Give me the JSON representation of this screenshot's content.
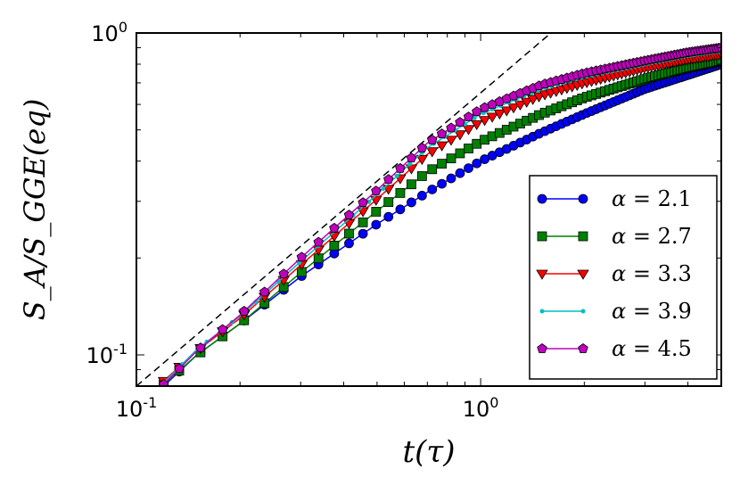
{
  "chart_data": {
    "type": "line",
    "title": "",
    "xlabel": "t(τ)",
    "ylabel": "S_A/S_GGE(eq)",
    "xscale": "log",
    "yscale": "log",
    "xlim": [
      0.1,
      5.0
    ],
    "ylim": [
      0.08,
      1.0
    ],
    "x_ticks": [
      {
        "value": 0.1,
        "base": "10",
        "exp": "-1"
      },
      {
        "value": 1.0,
        "base": "10",
        "exp": "0"
      }
    ],
    "y_ticks": [
      {
        "value": 0.1,
        "base": "10",
        "exp": "-1"
      },
      {
        "value": 1.0,
        "base": "10",
        "exp": "0"
      }
    ],
    "reference_line": {
      "name": "power-law guide (dashed)",
      "x": [
        0.1,
        1.6
      ],
      "y": [
        0.08,
        1.0
      ],
      "color": "#000000"
    },
    "legend_position": "lower-right",
    "series": [
      {
        "name": "α = 2.1",
        "alpha": "α",
        "value": "2.1",
        "color": "#0000ff",
        "marker": "circle",
        "x": [
          0.12,
          0.15,
          0.2,
          0.3,
          0.5,
          0.7,
          1.0,
          1.5,
          2.0,
          3.0,
          4.0,
          5.0
        ],
        "y": [
          0.08,
          0.1,
          0.125,
          0.175,
          0.255,
          0.32,
          0.4,
          0.49,
          0.56,
          0.67,
          0.74,
          0.8
        ]
      },
      {
        "name": "α = 2.7",
        "alpha": "α",
        "value": "2.7",
        "color": "#008000",
        "marker": "square",
        "x": [
          0.12,
          0.15,
          0.2,
          0.3,
          0.5,
          0.7,
          1.0,
          1.5,
          2.0,
          3.0,
          4.0,
          5.0
        ],
        "y": [
          0.081,
          0.1,
          0.125,
          0.18,
          0.28,
          0.37,
          0.46,
          0.56,
          0.63,
          0.72,
          0.78,
          0.82
        ]
      },
      {
        "name": "α = 3.3",
        "alpha": "α",
        "value": "3.3",
        "color": "#ff0000",
        "marker": "triangle-down",
        "x": [
          0.12,
          0.15,
          0.2,
          0.3,
          0.5,
          0.7,
          1.0,
          1.5,
          2.0,
          3.0,
          4.0,
          5.0
        ],
        "y": [
          0.083,
          0.103,
          0.13,
          0.19,
          0.305,
          0.42,
          0.53,
          0.64,
          0.7,
          0.78,
          0.83,
          0.86
        ]
      },
      {
        "name": "α = 3.9",
        "alpha": "α",
        "value": "3.9",
        "color": "#00bfbf",
        "marker": "point",
        "x": [
          0.12,
          0.15,
          0.2,
          0.3,
          0.5,
          0.7,
          1.0,
          1.5,
          2.0,
          3.0,
          4.0,
          5.0
        ],
        "y": [
          0.082,
          0.104,
          0.132,
          0.195,
          0.315,
          0.44,
          0.56,
          0.67,
          0.73,
          0.8,
          0.85,
          0.88
        ]
      },
      {
        "name": "α = 4.5",
        "alpha": "α",
        "value": "4.5",
        "color": "#bf00bf",
        "marker": "pentagon",
        "x": [
          0.12,
          0.15,
          0.2,
          0.3,
          0.5,
          0.7,
          1.0,
          1.5,
          2.0,
          3.0,
          4.0,
          5.0
        ],
        "y": [
          0.081,
          0.103,
          0.133,
          0.2,
          0.325,
          0.455,
          0.58,
          0.69,
          0.75,
          0.82,
          0.87,
          0.9
        ]
      }
    ]
  }
}
